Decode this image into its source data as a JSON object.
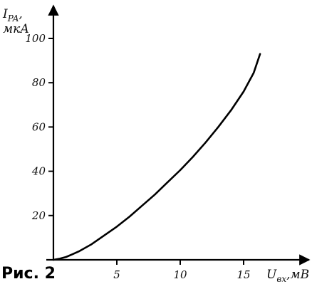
{
  "chart_data": {
    "type": "line",
    "figure_label": "Рис. 2",
    "ylabel": {
      "symbol": "I",
      "subscript": "PA",
      "comma": ",",
      "unit": "мкА"
    },
    "xlabel": {
      "symbol": "U",
      "subscript": "вх",
      "comma": ",",
      "unit": "мВ"
    },
    "xlim": [
      0,
      18
    ],
    "ylim": [
      0,
      110
    ],
    "x_ticks": [
      5,
      10,
      15
    ],
    "y_ticks": [
      20,
      40,
      60,
      80,
      100
    ],
    "grid": false,
    "series": [
      {
        "x": [
          0,
          0.5,
          1,
          1.5,
          2,
          3,
          4,
          5,
          6,
          7,
          8,
          9,
          10,
          11,
          12,
          13,
          14,
          15,
          15.8,
          16.3
        ],
        "y": [
          0,
          0.5,
          1.3,
          2.5,
          3.8,
          7,
          11,
          15,
          19.5,
          24.5,
          29.5,
          35,
          40.5,
          46.5,
          53,
          60,
          67.5,
          76,
          84.5,
          93
        ]
      }
    ]
  }
}
